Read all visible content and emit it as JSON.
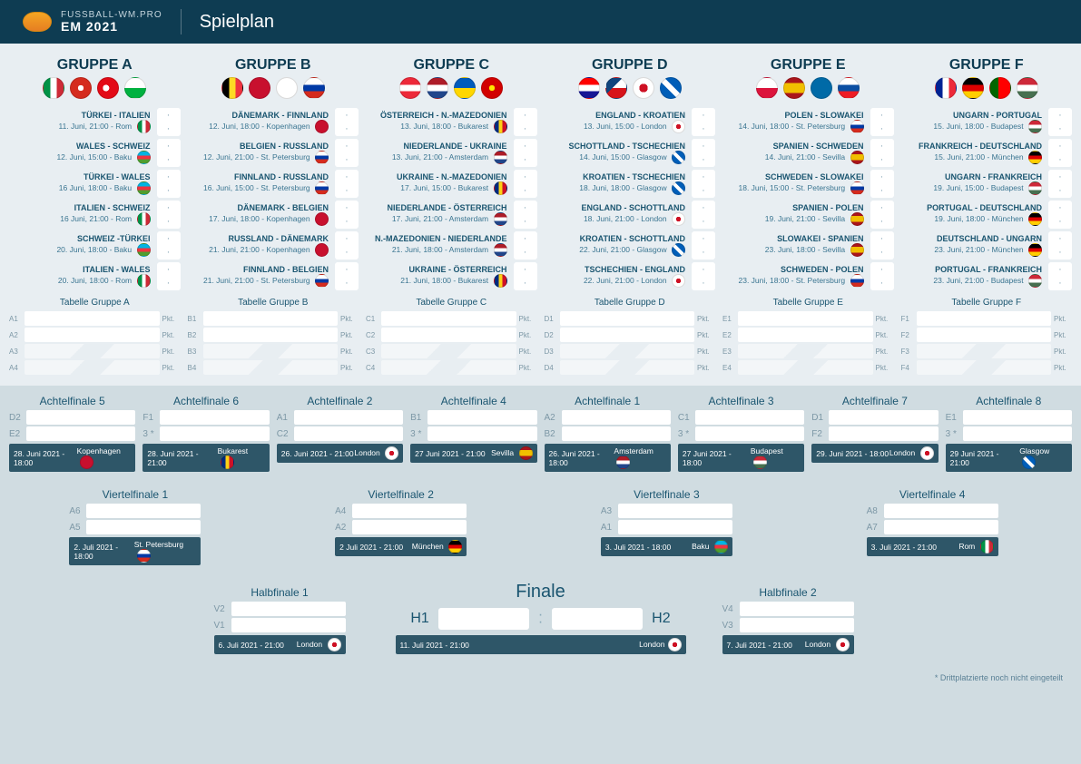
{
  "header": {
    "site": "FUSSBALL-WM.PRO",
    "edition": "EM 2021",
    "title": "Spielplan"
  },
  "flag_colors": {
    "ITA": "linear-gradient(90deg,#009246 33%,#fff 33%,#fff 66%,#CE2B37 66%)",
    "SUI": "radial-gradient(#fff 20%,transparent 21%), linear-gradient(#D52B1E,#D52B1E)",
    "TUR": "radial-gradient(circle at 40% 50%,#fff 20%,transparent 21%), #E30A17",
    "WAL": "linear-gradient(#fff 50%,#00B140 50%)",
    "BEL": "linear-gradient(90deg,#000 33%,#FDDA24 33%,#FDDA24 66%,#EF3340 66%)",
    "DEN": "linear-gradient(#C8102E,#C8102E)",
    "FIN": "linear-gradient(#fff,#fff)",
    "RUS": "linear-gradient(#fff 33%,#0039A6 33%,#0039A6 66%,#D52B1E 66%)",
    "AUT": "linear-gradient(#ED2939 33%,#fff 33%,#fff 66%,#ED2939 66%)",
    "NED": "linear-gradient(#AE1C28 33%,#fff 33%,#fff 66%,#21468B 66%)",
    "UKR": "linear-gradient(#005BBB 50%,#FFD700 50%)",
    "MKD": "radial-gradient(circle,#FFE600 20%,#D20000 21%)",
    "CRO": "linear-gradient(#FF0000 33%,#fff 33%,#fff 66%,#171796 66%)",
    "CZE": "linear-gradient(135deg,#11457E 40%,transparent 40%),linear-gradient(#fff 50%,#D7141A 50%)",
    "ENG": "radial-gradient(circle,transparent 30%,#fff 30%), linear-gradient(#CE1124,#CE1124)",
    "SCO": "linear-gradient(45deg,#005EB8 40%,#fff 40%,#fff 60%,#005EB8 60%),linear-gradient(-45deg,#005EB8 40%,#fff 40%,#fff 60%,#005EB8 60%)",
    "POL": "linear-gradient(#fff 50%,#DC143C 50%)",
    "ESP": "linear-gradient(#AA151B 25%,#F1BF00 25%,#F1BF00 75%,#AA151B 75%)",
    "SWE": "linear-gradient(#006AA7,#006AA7)",
    "SVK": "linear-gradient(#fff 33%,#0B4EA2 33%,#0B4EA2 66%,#EE1C25 66%)",
    "FRA": "linear-gradient(90deg,#002395 33%,#fff 33%,#fff 66%,#ED2939 66%)",
    "GER": "linear-gradient(#000 33%,#DD0000 33%,#DD0000 66%,#FFCE00 66%)",
    "POR": "linear-gradient(90deg,#006600 40%,#FF0000 40%)",
    "HUN": "linear-gradient(#CE2939 33%,#fff 33%,#fff 66%,#477050 66%)",
    "AZE": "linear-gradient(#00B5E2 33%,#EF3340 33%,#EF3340 66%,#509E2F 66%)",
    "ROU": "linear-gradient(90deg,#002B7F 33%,#FCD116 33%,#FCD116 66%,#CE1126 66%)"
  },
  "groups": [
    {
      "key": "A",
      "title": "GRUPPE A",
      "flags": [
        "ITA",
        "SUI",
        "TUR",
        "WAL"
      ],
      "table": "Tabelle Gruppe A",
      "matches": [
        {
          "t": "TÜRKEI - ITALIEN",
          "m": "11. Juni, 21:00 - Rom",
          "f": "ITA"
        },
        {
          "t": "WALES - SCHWEIZ",
          "m": "12. Juni, 15:00 - Baku",
          "f": "AZE"
        },
        {
          "t": "TÜRKEI - WALES",
          "m": "16 Juni, 18:00 - Baku",
          "f": "AZE"
        },
        {
          "t": "ITALIEN - SCHWEIZ",
          "m": "16 Juni, 21:00 - Rom",
          "f": "ITA"
        },
        {
          "t": "SCHWEIZ -TÜRKEI",
          "m": "20. Juni, 18:00 - Baku",
          "f": "AZE"
        },
        {
          "t": "ITALIEN - WALES",
          "m": "20. Juni, 18:00 - Rom",
          "f": "ITA"
        }
      ]
    },
    {
      "key": "B",
      "title": "GRUPPE B",
      "flags": [
        "BEL",
        "DEN",
        "FIN",
        "RUS"
      ],
      "table": "Tabelle Gruppe B",
      "matches": [
        {
          "t": "DÄNEMARK - FINNLAND",
          "m": "12. Juni, 18:00 - Kopenhagen",
          "f": "DEN"
        },
        {
          "t": "BELGIEN - RUSSLAND",
          "m": "12. Juni, 21:00 - St. Petersburg",
          "f": "RUS"
        },
        {
          "t": "FINNLAND - RUSSLAND",
          "m": "16. Juni, 15:00 - St. Petersburg",
          "f": "RUS"
        },
        {
          "t": "DÄNEMARK - BELGIEN",
          "m": "17. Juni, 18:00 - Kopenhagen",
          "f": "DEN"
        },
        {
          "t": "RUSSLAND - DÄNEMARK",
          "m": "21. Juni, 21:00 - Kopenhagen",
          "f": "DEN"
        },
        {
          "t": "FINNLAND - BELGIEN",
          "m": "21. Juni, 21:00 - St. Petersburg",
          "f": "RUS"
        }
      ]
    },
    {
      "key": "C",
      "title": "GRUPPE C",
      "flags": [
        "AUT",
        "NED",
        "UKR",
        "MKD"
      ],
      "table": "Tabelle Gruppe C",
      "matches": [
        {
          "t": "ÖSTERREICH - N.-MAZEDONIEN",
          "m": "13. Juni, 18:00 - Bukarest",
          "f": "ROU"
        },
        {
          "t": "NIEDERLANDE - UKRAINE",
          "m": "13. Juni, 21:00 - Amsterdam",
          "f": "NED"
        },
        {
          "t": "UKRAINE - N.-MAZEDONIEN",
          "m": "17. Juni, 15:00 - Bukarest",
          "f": "ROU"
        },
        {
          "t": "NIEDERLANDE - ÖSTERREICH",
          "m": "17. Juni, 21:00 - Amsterdam",
          "f": "NED"
        },
        {
          "t": "N.-MAZEDONIEN - NIEDERLANDE",
          "m": "21. Juni, 18:00 - Amsterdam",
          "f": "NED"
        },
        {
          "t": "UKRAINE - ÖSTERREICH",
          "m": "21. Juni, 18:00 - Bukarest",
          "f": "ROU"
        }
      ]
    },
    {
      "key": "D",
      "title": "GRUPPE D",
      "flags": [
        "CRO",
        "CZE",
        "ENG",
        "SCO"
      ],
      "table": "Tabelle Gruppe D",
      "matches": [
        {
          "t": "ENGLAND - KROATIEN",
          "m": "13. Juni, 15:00 - London",
          "f": "ENG"
        },
        {
          "t": "SCHOTTLAND - TSCHECHIEN",
          "m": "14. Juni, 15:00 - Glasgow",
          "f": "SCO"
        },
        {
          "t": "KROATIEN - TSCHECHIEN",
          "m": "18. Juni, 18:00 - Glasgow",
          "f": "SCO"
        },
        {
          "t": "ENGLAND - SCHOTTLAND",
          "m": "18. Juni, 21:00 - London",
          "f": "ENG"
        },
        {
          "t": "KROATIEN - SCHOTTLAND",
          "m": "22. Juni, 21:00 - Glasgow",
          "f": "SCO"
        },
        {
          "t": "TSCHECHIEN - ENGLAND",
          "m": "22. Juni, 21:00 - London",
          "f": "ENG"
        }
      ]
    },
    {
      "key": "E",
      "title": "GRUPPE E",
      "flags": [
        "POL",
        "ESP",
        "SWE",
        "SVK"
      ],
      "table": "Tabelle Gruppe E",
      "matches": [
        {
          "t": "POLEN - SLOWAKEI",
          "m": "14. Juni, 18:00 - St. Petersburg",
          "f": "RUS"
        },
        {
          "t": "SPANIEN - SCHWEDEN",
          "m": "14. Juni, 21:00 - Sevilla",
          "f": "ESP"
        },
        {
          "t": "SCHWEDEN - SLOWAKEI",
          "m": "18. Juni, 15:00 - St. Petersburg",
          "f": "RUS"
        },
        {
          "t": "SPANIEN - POLEN",
          "m": "19. Juni, 21:00 - Sevilla",
          "f": "ESP"
        },
        {
          "t": "SLOWAKEI - SPANIEN",
          "m": "23. Juni, 18:00 - Sevilla",
          "f": "ESP"
        },
        {
          "t": "SCHWEDEN - POLEN",
          "m": "23. Juni, 18:00 - St. Petersburg",
          "f": "RUS"
        }
      ]
    },
    {
      "key": "F",
      "title": "GRUPPE F",
      "flags": [
        "FRA",
        "GER",
        "POR",
        "HUN"
      ],
      "table": "Tabelle Gruppe F",
      "matches": [
        {
          "t": "UNGARN - PORTUGAL",
          "m": "15. Juni, 18:00 - Budapest",
          "f": "HUN"
        },
        {
          "t": "FRANKREICH - DEUTSCHLAND",
          "m": "15. Juni, 21:00 - München",
          "f": "GER"
        },
        {
          "t": "UNGARN - FRANKREICH",
          "m": "19. Juni, 15:00 - Budapest",
          "f": "HUN"
        },
        {
          "t": "PORTUGAL - DEUTSCHLAND",
          "m": "19. Juni, 18:00 - München",
          "f": "GER"
        },
        {
          "t": "DEUTSCHLAND - UNGARN",
          "m": "23. Juni, 21:00 - München",
          "f": "GER"
        },
        {
          "t": "PORTUGAL - FRANKREICH",
          "m": "23. Juni, 21:00 - Budapest",
          "f": "HUN"
        }
      ]
    }
  ],
  "pkt_label": "Pkt.",
  "r16": [
    {
      "title": "Achtelfinale 5",
      "seeds": [
        "D2",
        "E2"
      ],
      "date": "28. Juni 2021 - 18:00",
      "venue": "Kopenhagen",
      "f": "DEN"
    },
    {
      "title": "Achtelfinale 6",
      "seeds": [
        "F1",
        "3 *"
      ],
      "date": "28. Juni 2021 - 21:00",
      "venue": "Bukarest",
      "f": "ROU"
    },
    {
      "title": "Achtelfinale 2",
      "seeds": [
        "A1",
        "C2"
      ],
      "date": "26. Juni 2021 - 21:00",
      "venue": "London",
      "f": "ENG"
    },
    {
      "title": "Achtelfinale 4",
      "seeds": [
        "B1",
        "3 *"
      ],
      "date": "27 Juni 2021 - 21:00",
      "venue": "Sevilla",
      "f": "ESP"
    },
    {
      "title": "Achtelfinale 1",
      "seeds": [
        "A2",
        "B2"
      ],
      "date": "26. Juni 2021 - 18:00",
      "venue": "Amsterdam",
      "f": "NED"
    },
    {
      "title": "Achtelfinale 3",
      "seeds": [
        "C1",
        "3 *"
      ],
      "date": "27 Juni 2021 - 18:00",
      "venue": "Budapest",
      "f": "HUN"
    },
    {
      "title": "Achtelfinale 7",
      "seeds": [
        "D1",
        "F2"
      ],
      "date": "29. Juni 2021 - 18:00",
      "venue": "London",
      "f": "ENG"
    },
    {
      "title": "Achtelfinale 8",
      "seeds": [
        "E1",
        "3 *"
      ],
      "date": "29 Juni 2021 - 21:00",
      "venue": "Glasgow",
      "f": "SCO"
    }
  ],
  "qf": [
    {
      "title": "Viertelfinale 1",
      "seeds": [
        "A6",
        "A5"
      ],
      "date": "2. Juli 2021 - 18:00",
      "venue": "St. Petersburg",
      "f": "RUS"
    },
    {
      "title": "Viertelfinale 2",
      "seeds": [
        "A4",
        "A2"
      ],
      "date": "2 Juli 2021 - 21:00",
      "venue": "München",
      "f": "GER"
    },
    {
      "title": "Viertelfinale 3",
      "seeds": [
        "A3",
        "A1"
      ],
      "date": "3. Juli 2021 - 18:00",
      "venue": "Baku",
      "f": "AZE"
    },
    {
      "title": "Viertelfinale 4",
      "seeds": [
        "A8",
        "A7"
      ],
      "date": "3. Juli 2021 - 21:00",
      "venue": "Rom",
      "f": "ITA"
    }
  ],
  "sf": [
    {
      "title": "Halbfinale 1",
      "seeds": [
        "V2",
        "V1"
      ],
      "date": "6. Juli 2021 - 21:00",
      "venue": "London",
      "f": "ENG"
    },
    {
      "title": "Halbfinale 2",
      "seeds": [
        "V4",
        "V3"
      ],
      "date": "7. Juli 2021 - 21:00",
      "venue": "London",
      "f": "ENG"
    }
  ],
  "final": {
    "title": "Finale",
    "seeds": [
      "H1",
      "H2"
    ],
    "date": "11. Juli 2021 - 21:00",
    "venue": "London",
    "f": "ENG"
  },
  "footnote": "* Drittplatzierte noch nicht eingeteilt"
}
